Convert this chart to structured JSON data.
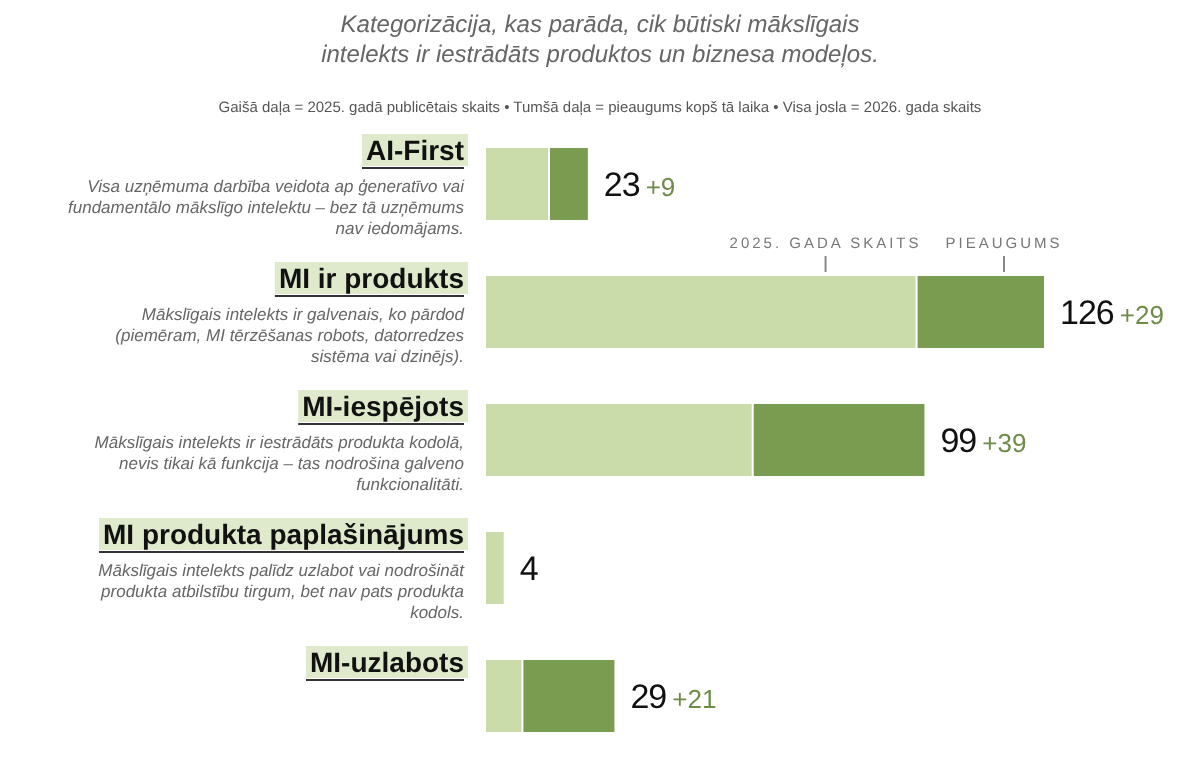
{
  "chart_data": {
    "type": "bar",
    "orientation": "horizontal",
    "stacked": true,
    "subtitle": "Kategorizācija, kas parāda, cik būtiski mākslīgais intelekts ir iestrādāts produktos un biznesa modeļos.",
    "categories": [
      "AI-First",
      "MI ir produkts",
      "MI-iespējots",
      "MI produkta paplašinājums",
      "MI-uzlabots"
    ],
    "series": [
      {
        "color": "#c9dcaa",
        "values": [
          14,
          97,
          60,
          4,
          8
        ]
      },
      {
        "color": "#7a9c50",
        "values": [
          9,
          29,
          39,
          null,
          21
        ],
        "value_labels": [
          "+9",
          "+29",
          "+39",
          null,
          "+21"
        ]
      }
    ],
    "totals": [
      "23",
      "126",
      "99",
      "4",
      "29"
    ],
    "annotations": [
      "Gaišā daļa = 2025. gadā publicētais skaits   •   Tumšā daļa = pieaugums kopš tā laika   •   Visa josla = 2026. gada skaits",
      {
        "text": "2025. GADA SKAITS",
        "x": 97,
        "y": "MI ir produkts"
      },
      {
        "text": "PIEAUGUMS",
        "x": 126,
        "y": "MI ir produkts"
      },
      "Visa uzņēmuma darbība veidota ap ģeneratīvo vai fundamentālo mākslīgo intelektu – bez tā uzņēmums nav iedomājams.",
      "Mākslīgais intelekts ir galvenais, ko pārdod (piemēram, MI tērzēšanas robots, datorredzes sistēma vai dzinējs).",
      "Mākslīgais intelekts ir iestrādāts produkta kodolā, nevis tikai kā funkcija – tas nodrošina galveno funkcionalitāti.",
      "Mākslīgais intelekts palīdz uzlabot vai nodrošināt produkta atbilstību tirgum, bet nav pats produkta kodols."
    ]
  }
}
